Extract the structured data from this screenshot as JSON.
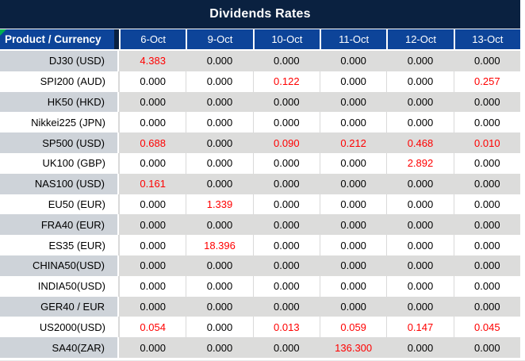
{
  "title": "Dividends Rates",
  "colors": {
    "title_bar_bg": "#0a2140",
    "header_bg": "#0d4499",
    "header_divider": "#ffffff",
    "label_header_divider": "#0a2140",
    "gray_row_label_bg": "#ced3d9",
    "gray_row_data_bg": "#dcdcdb",
    "gridline": "#d9d9d9",
    "highlight_value": "#ff0000",
    "value_text": "#000000",
    "header_text": "#ffffff",
    "corner_marker_green": "#00b050"
  },
  "icons": {
    "corner_marker": "green-corner-triangle"
  },
  "table": {
    "product_header": "Product / Currency",
    "dates": [
      "6-Oct",
      "9-Oct",
      "10-Oct",
      "11-Oct",
      "12-Oct",
      "13-Oct"
    ],
    "rows": [
      {
        "product": "DJ30 (USD)",
        "values": [
          "4.383",
          "0.000",
          "0.000",
          "0.000",
          "0.000",
          "0.000"
        ],
        "red": [
          0
        ]
      },
      {
        "product": "SPI200 (AUD)",
        "values": [
          "0.000",
          "0.000",
          "0.122",
          "0.000",
          "0.000",
          "0.257"
        ],
        "red": [
          2,
          5
        ]
      },
      {
        "product": "HK50 (HKD)",
        "values": [
          "0.000",
          "0.000",
          "0.000",
          "0.000",
          "0.000",
          "0.000"
        ],
        "red": []
      },
      {
        "product": "Nikkei225 (JPN)",
        "values": [
          "0.000",
          "0.000",
          "0.000",
          "0.000",
          "0.000",
          "0.000"
        ],
        "red": []
      },
      {
        "product": "SP500 (USD)",
        "values": [
          "0.688",
          "0.000",
          "0.090",
          "0.212",
          "0.468",
          "0.010"
        ],
        "red": [
          0,
          2,
          3,
          4,
          5
        ]
      },
      {
        "product": "UK100 (GBP)",
        "values": [
          "0.000",
          "0.000",
          "0.000",
          "0.000",
          "2.892",
          "0.000"
        ],
        "red": [
          4
        ]
      },
      {
        "product": "NAS100 (USD)",
        "values": [
          "0.161",
          "0.000",
          "0.000",
          "0.000",
          "0.000",
          "0.000"
        ],
        "red": [
          0
        ]
      },
      {
        "product": "EU50 (EUR)",
        "values": [
          "0.000",
          "1.339",
          "0.000",
          "0.000",
          "0.000",
          "0.000"
        ],
        "red": [
          1
        ]
      },
      {
        "product": "FRA40 (EUR)",
        "values": [
          "0.000",
          "0.000",
          "0.000",
          "0.000",
          "0.000",
          "0.000"
        ],
        "red": []
      },
      {
        "product": "ES35 (EUR)",
        "values": [
          "0.000",
          "18.396",
          "0.000",
          "0.000",
          "0.000",
          "0.000"
        ],
        "red": [
          1
        ]
      },
      {
        "product": "CHINA50(USD)",
        "values": [
          "0.000",
          "0.000",
          "0.000",
          "0.000",
          "0.000",
          "0.000"
        ],
        "red": []
      },
      {
        "product": "INDIA50(USD)",
        "values": [
          "0.000",
          "0.000",
          "0.000",
          "0.000",
          "0.000",
          "0.000"
        ],
        "red": []
      },
      {
        "product": "GER40 / EUR",
        "values": [
          "0.000",
          "0.000",
          "0.000",
          "0.000",
          "0.000",
          "0.000"
        ],
        "red": []
      },
      {
        "product": "US2000(USD)",
        "values": [
          "0.054",
          "0.000",
          "0.013",
          "0.059",
          "0.147",
          "0.045"
        ],
        "red": [
          0,
          2,
          3,
          4,
          5
        ]
      },
      {
        "product": "SA40(ZAR)",
        "values": [
          "0.000",
          "0.000",
          "0.000",
          "136.300",
          "0.000",
          "0.000"
        ],
        "red": [
          3
        ]
      }
    ]
  }
}
